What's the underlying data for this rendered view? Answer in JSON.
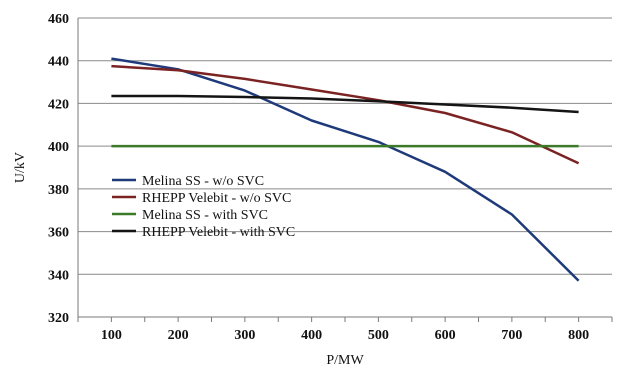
{
  "chart_data": {
    "type": "line",
    "title": "",
    "xlabel": "P/MW",
    "ylabel": "U/kV",
    "x": [
      100,
      200,
      300,
      400,
      500,
      600,
      700,
      800
    ],
    "xlim": [
      50,
      850
    ],
    "ylim": [
      320,
      460
    ],
    "yticks": [
      320,
      340,
      360,
      380,
      400,
      420,
      440,
      460
    ],
    "xticks": [
      100,
      200,
      300,
      400,
      500,
      600,
      700,
      800
    ],
    "grid": "horizontal",
    "legend_position": "lower-left inside plot",
    "series": [
      {
        "name": "Melina SS - w/o SVC",
        "color": "#1f3a7a",
        "values": [
          441,
          436,
          426,
          412,
          402,
          388,
          368,
          337
        ]
      },
      {
        "name": "RHEPP Velebit - w/o SVC",
        "color": "#7b2323",
        "values": [
          437.5,
          435.5,
          431.5,
          426.5,
          421.5,
          415.5,
          406.5,
          392
        ]
      },
      {
        "name": "Melina SS - with SVC",
        "color": "#3c7a2a",
        "values": [
          400,
          400,
          400,
          400,
          400,
          400,
          400,
          400
        ]
      },
      {
        "name": "RHEPP Velebit - with SVC",
        "color": "#141414",
        "values": [
          423.5,
          423.5,
          423,
          422.3,
          421,
          419.5,
          418,
          416
        ]
      }
    ]
  }
}
